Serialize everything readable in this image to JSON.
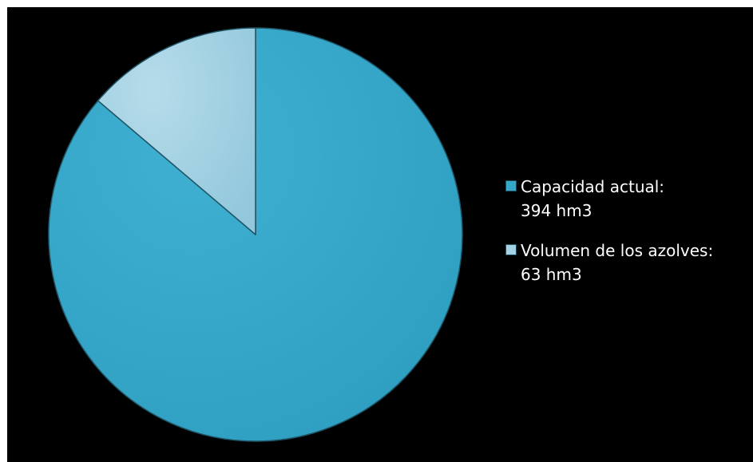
{
  "chart_data": {
    "type": "pie",
    "title": "",
    "slices": [
      {
        "label": "Capacidad actual:",
        "value_text": "394 hm3",
        "value": 394,
        "color": "#35a7c9"
      },
      {
        "label": "Volumen de los azolves:",
        "value_text": "63 hm3",
        "value": 63,
        "color": "#a3d2e4"
      }
    ],
    "legend_position": "right",
    "background": "#000000"
  }
}
